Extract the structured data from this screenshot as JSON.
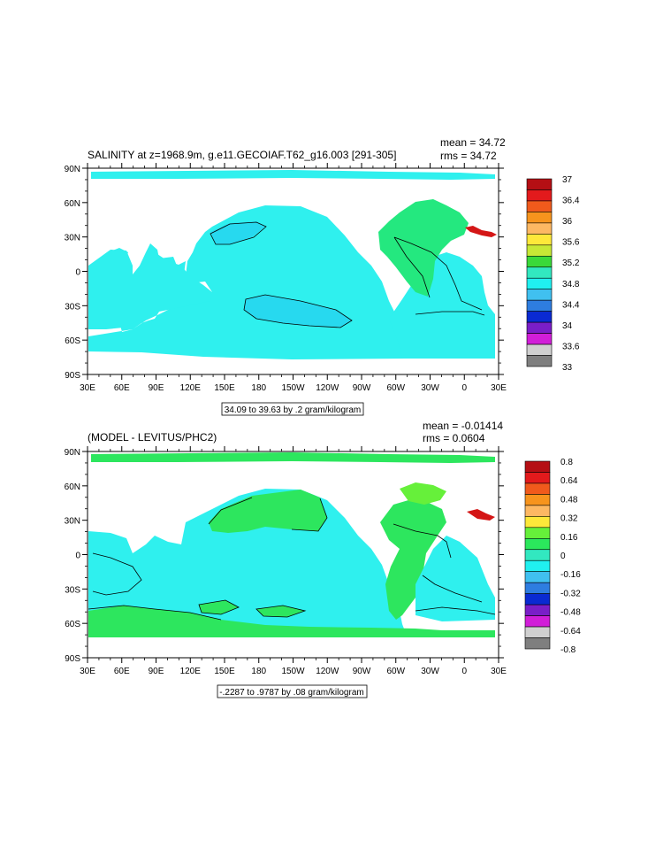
{
  "chart_data": [
    {
      "type": "heatmap",
      "title": "SALINITY at z=1968.9m, g.e11.GECOIAF.T62_g16.003 [291-305]",
      "stats": [
        "mean = 34.72",
        "rms = 34.72"
      ],
      "xlabel": "",
      "ylabel": "",
      "xlim": [
        30,
        390
      ],
      "ylim": [
        -90,
        90
      ],
      "x_tick_labels": [
        "30E",
        "60E",
        "90E",
        "120E",
        "150E",
        "180",
        "150W",
        "120W",
        "90W",
        "60W",
        "30W",
        "0",
        "30E"
      ],
      "y_tick_labels": [
        "90N",
        "60N",
        "30N",
        "0",
        "30S",
        "60S",
        "90S"
      ],
      "contour_info": "34.09 to 39.63 by .2 gram/kilogram",
      "colorbar": {
        "labels": [
          "37",
          "36.4",
          "36",
          "35.6",
          "35.2",
          "34.8",
          "34.4",
          "34",
          "33.6",
          "33"
        ],
        "colors": [
          "#b50f14",
          "#e31a1c",
          "#f05a1c",
          "#f7941d",
          "#fdb863",
          "#fee83a",
          "#c7e836",
          "#3ad93a",
          "#32e8c0",
          "#20f0f0",
          "#40c0f0",
          "#2e7de0",
          "#0a2ad2",
          "#7a1ec8",
          "#d11ed8",
          "#d0d0d0",
          "#7f7f7f"
        ]
      },
      "fields": {
        "ocean": "#2ff0ee",
        "pacific_core": "#27d9ef",
        "atlantic": "#24e87f",
        "med": "#d41616",
        "contour": "#000000"
      }
    },
    {
      "type": "heatmap",
      "title": "(MODEL - LEVITUS/PHC2)",
      "stats": [
        "mean = -0.01414",
        "rms = 0.0604"
      ],
      "xlabel": "",
      "ylabel": "",
      "xlim": [
        30,
        390
      ],
      "ylim": [
        -90,
        90
      ],
      "x_tick_labels": [
        "30E",
        "60E",
        "90E",
        "120E",
        "150E",
        "180",
        "150W",
        "120W",
        "90W",
        "60W",
        "30W",
        "0",
        "30E"
      ],
      "y_tick_labels": [
        "90N",
        "60N",
        "30N",
        "0",
        "30S",
        "60S",
        "90S"
      ],
      "contour_info": "-.2287 to .9787 by .08 gram/kilogram",
      "colorbar": {
        "labels": [
          "0.8",
          "0.64",
          "0.48",
          "0.32",
          "0.16",
          "0",
          "-0.16",
          "-0.32",
          "-0.48",
          "-0.64",
          "-0.8"
        ],
        "colors": [
          "#b50f14",
          "#e31a1c",
          "#f05a1c",
          "#f7941d",
          "#fdb863",
          "#fee83a",
          "#66f03a",
          "#2be85c",
          "#32e8c0",
          "#20f0f0",
          "#40c0f0",
          "#2e7de0",
          "#0a2ad2",
          "#7a1ec8",
          "#d11ed8",
          "#d0d0d0",
          "#7f7f7f"
        ]
      },
      "fields": {
        "ocean": "#2ff0ee",
        "positive": "#2de65e",
        "north_atlantic": "#66f03a",
        "med": "#d41616",
        "contour": "#000000"
      }
    }
  ]
}
